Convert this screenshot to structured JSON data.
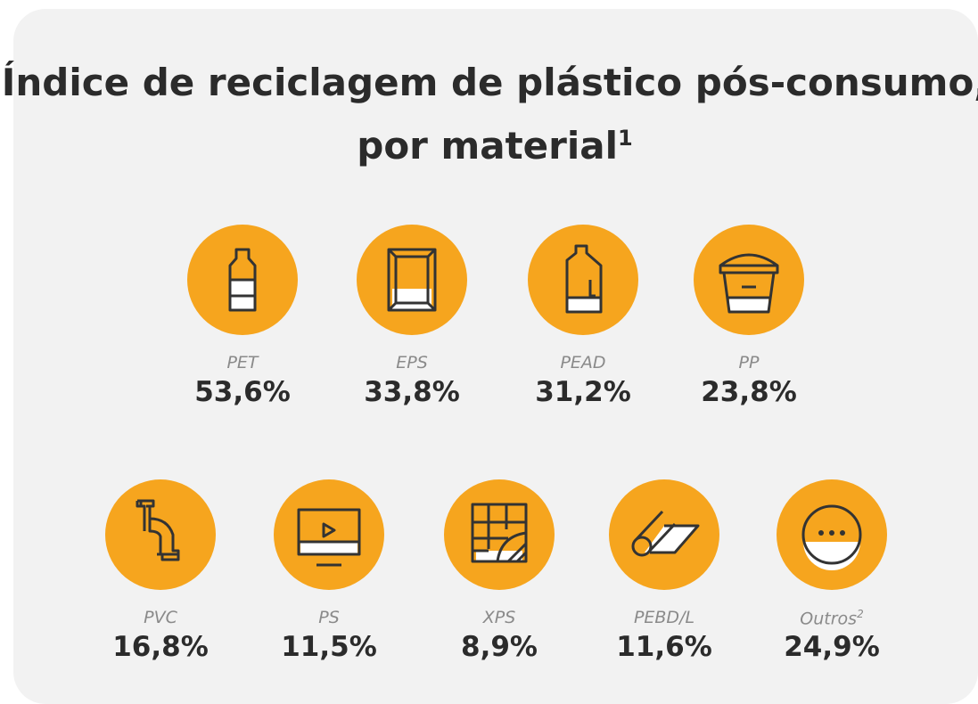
{
  "title": "Índice de reciclagem de plástico pós-consumo, por material",
  "title_note": "1",
  "items": [
    {
      "label": "PET",
      "value": "53,6%"
    },
    {
      "label": "EPS",
      "value": "33,8%"
    },
    {
      "label": "PEAD",
      "value": "31,2%"
    },
    {
      "label": "PP",
      "value": "23,8%"
    },
    {
      "label": "PVC",
      "value": "16,8%"
    },
    {
      "label": "PS",
      "value": "11,5%"
    },
    {
      "label": "XPS",
      "value": "8,9%"
    },
    {
      "label": "PEBD/L",
      "value": "11,6%"
    },
    {
      "label": "Outros",
      "note": "2",
      "value": "24,9%"
    }
  ]
}
